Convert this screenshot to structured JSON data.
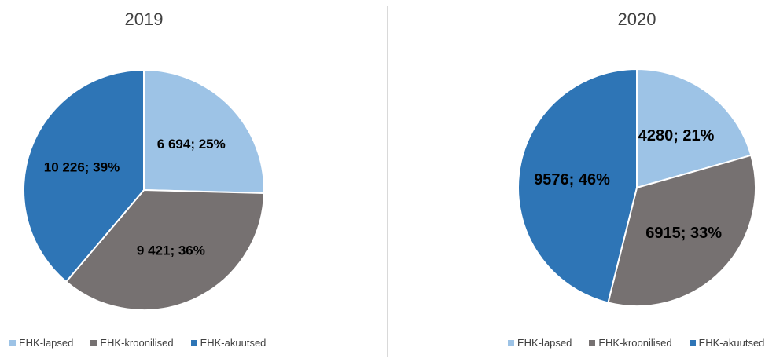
{
  "chart_data": [
    {
      "type": "pie",
      "title": "2019",
      "labels": [
        "EHK-lapsed",
        "EHK-kroonilised",
        "EHK-akuutsed"
      ],
      "values": [
        6694,
        9421,
        10226
      ],
      "data_labels": [
        "6 694; 25%",
        "9 421; 36%",
        "10 226; 39%"
      ],
      "colors": [
        "#9DC3E6",
        "#767171",
        "#2E75B6"
      ],
      "legend_position": "bottom"
    },
    {
      "type": "pie",
      "title": "2020",
      "labels": [
        "EHK-lapsed",
        "EHK-kroonilised",
        "EHK-akuutsed"
      ],
      "values": [
        4280,
        6915,
        9576
      ],
      "data_labels": [
        "4280; 21%",
        "6915; 33%",
        "9576; 46%"
      ],
      "colors": [
        "#9DC3E6",
        "#767171",
        "#2E75B6"
      ],
      "legend_position": "bottom-right"
    }
  ]
}
